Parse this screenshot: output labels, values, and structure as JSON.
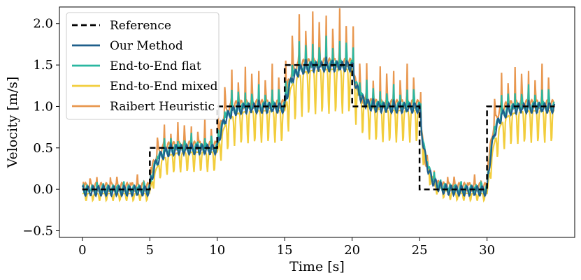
{
  "chart_data": {
    "type": "line",
    "xlabel": "Time [s]",
    "ylabel": "Velocity [m/s]",
    "xlim": [
      -1.7,
      36.5
    ],
    "ylim": [
      -0.58,
      2.2
    ],
    "x_ticks": [
      0,
      5,
      10,
      15,
      20,
      25,
      30
    ],
    "y_ticks": [
      -0.5,
      0.0,
      0.5,
      1.0,
      1.5,
      2.0
    ],
    "x_tick_labels": [
      "0",
      "5",
      "10",
      "15",
      "20",
      "25",
      "30"
    ],
    "y_tick_labels": [
      "−0.5",
      "0.0",
      "0.5",
      "1.0",
      "1.5",
      "2.0"
    ],
    "grid": false,
    "legend_position": "top-left",
    "duration_s": 35,
    "reference_schedule": [
      {
        "t_start": 0,
        "t_end": 5,
        "v": 0.0
      },
      {
        "t_start": 5,
        "t_end": 10,
        "v": 0.5
      },
      {
        "t_start": 10,
        "t_end": 15,
        "v": 1.0
      },
      {
        "t_start": 15,
        "t_end": 20,
        "v": 1.5
      },
      {
        "t_start": 20,
        "t_end": 25,
        "v": 1.0
      },
      {
        "t_start": 25,
        "t_end": 30,
        "v": 0.0
      },
      {
        "t_start": 30,
        "t_end": 35,
        "v": 1.0
      }
    ],
    "series": [
      {
        "name": "Reference",
        "color": "#000000",
        "dashed": true,
        "gait_freq_hz": 0,
        "ripple_amp": 0,
        "spike_amp": 0,
        "offset": 0,
        "lag_s": 0,
        "points": [
          [
            0,
            0
          ],
          [
            5,
            0
          ],
          [
            5,
            0.5
          ],
          [
            10,
            0.5
          ],
          [
            10,
            1.0
          ],
          [
            15,
            1.0
          ],
          [
            15,
            1.5
          ],
          [
            20,
            1.5
          ],
          [
            20,
            1.0
          ],
          [
            25,
            1.0
          ],
          [
            25,
            0
          ],
          [
            30,
            0
          ],
          [
            30,
            1.0
          ],
          [
            35,
            1.0
          ]
        ]
      },
      {
        "name": "Our Method",
        "color": "#1f5f8b",
        "dashed": false,
        "gait_freq_hz": 2.0,
        "ripple_amp": 0.06,
        "spike_amp": 0.04,
        "offset": -0.02,
        "lag_s": 0.5
      },
      {
        "name": "End-to-End flat",
        "color": "#2ab7a0",
        "dashed": false,
        "gait_freq_hz": 2.0,
        "ripple_amp": 0.05,
        "spike_amp": 0.18,
        "offset": 0.0,
        "lag_s": 0.5
      },
      {
        "name": "End-to-End mixed",
        "color": "#f2cd3c",
        "dashed": false,
        "gait_freq_hz": 2.0,
        "ripple_amp": 0.0,
        "spike_amp": 0.0,
        "offset": -0.05,
        "lag_s": 0.6,
        "trough_amp": 0.3
      },
      {
        "name": "Raibert Heuristic",
        "color": "#e8974f",
        "dashed": false,
        "gait_freq_hz": 2.0,
        "ripple_amp": 0.05,
        "spike_amp": 0.35,
        "offset": 0.03,
        "lag_s": 0.4
      }
    ]
  }
}
